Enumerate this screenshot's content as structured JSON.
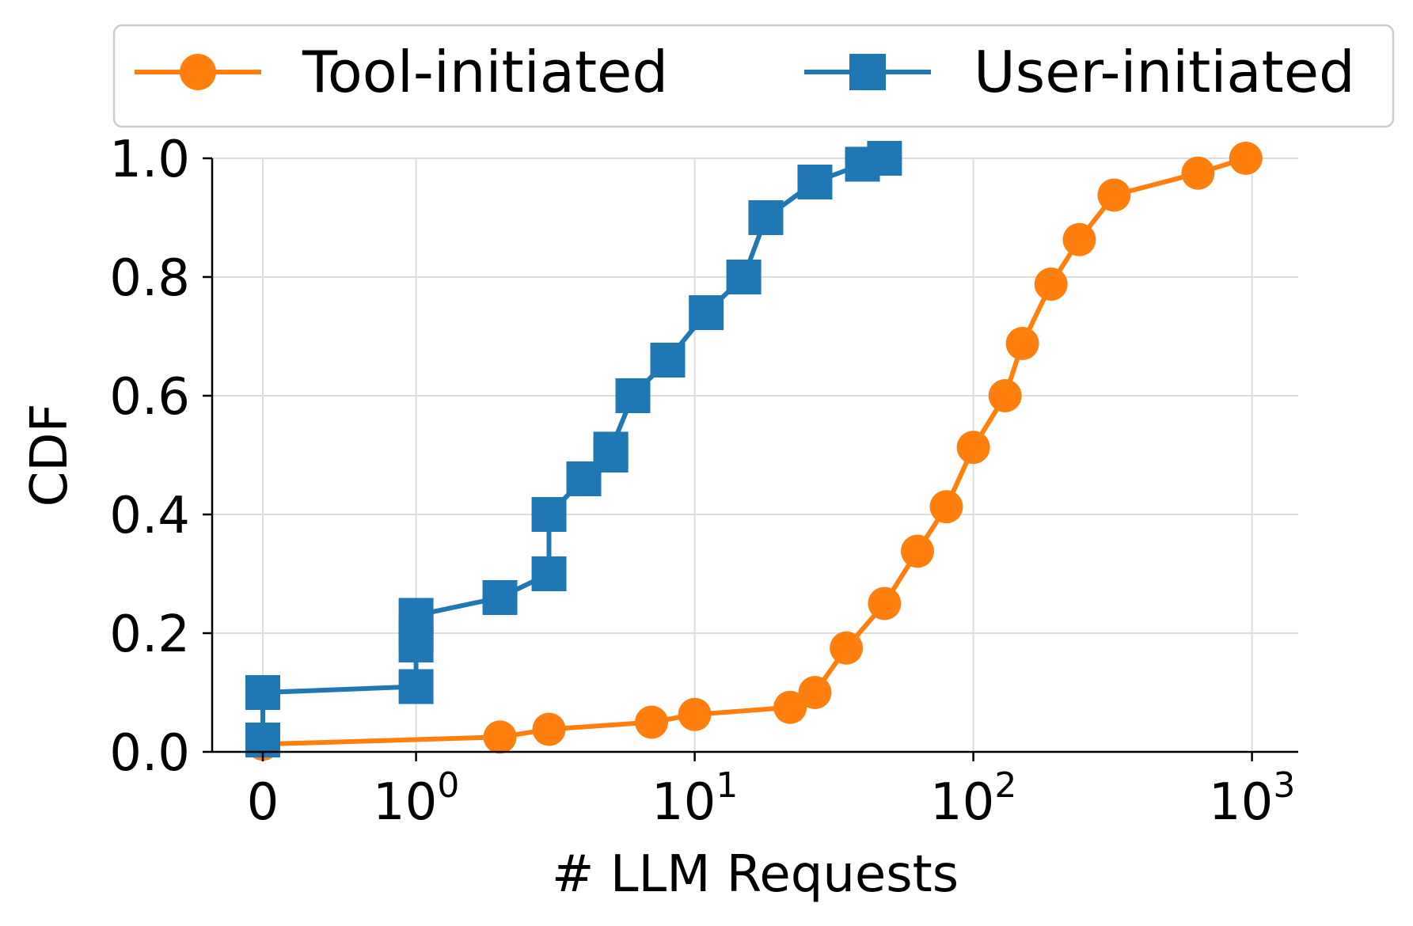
{
  "chart_data": {
    "type": "line",
    "xlabel": "# LLM Requests",
    "ylabel": "CDF",
    "x_scale": "symlog",
    "xlim": [
      -0.3,
      1300
    ],
    "ylim": [
      0.0,
      1.0
    ],
    "grid": true,
    "legend_position": "top (above plot, 2 columns)",
    "x_ticks": [
      {
        "value": 0,
        "base": "0",
        "exp": ""
      },
      {
        "value": 1,
        "base": "10",
        "exp": "0"
      },
      {
        "value": 10,
        "base": "10",
        "exp": "1"
      },
      {
        "value": 100,
        "base": "10",
        "exp": "2"
      },
      {
        "value": 1000,
        "base": "10",
        "exp": "3"
      }
    ],
    "y_ticks": [
      "0.0",
      "0.2",
      "0.4",
      "0.6",
      "0.8",
      "1.0"
    ],
    "series": [
      {
        "name": "Tool-initiated",
        "color": "#ff7f0e",
        "marker": "circle",
        "points": [
          {
            "x": 0,
            "y": 0.013
          },
          {
            "x": 2,
            "y": 0.025
          },
          {
            "x": 3,
            "y": 0.038
          },
          {
            "x": 7,
            "y": 0.05
          },
          {
            "x": 10,
            "y": 0.063
          },
          {
            "x": 22,
            "y": 0.075
          },
          {
            "x": 27,
            "y": 0.1
          },
          {
            "x": 35,
            "y": 0.175
          },
          {
            "x": 48,
            "y": 0.25
          },
          {
            "x": 63,
            "y": 0.338
          },
          {
            "x": 80,
            "y": 0.413
          },
          {
            "x": 100,
            "y": 0.513
          },
          {
            "x": 130,
            "y": 0.6
          },
          {
            "x": 150,
            "y": 0.688
          },
          {
            "x": 190,
            "y": 0.788
          },
          {
            "x": 240,
            "y": 0.863
          },
          {
            "x": 320,
            "y": 0.938
          },
          {
            "x": 640,
            "y": 0.975
          },
          {
            "x": 950,
            "y": 1.0
          }
        ]
      },
      {
        "name": "User-initiated",
        "color": "#1f77b4",
        "marker": "square",
        "points": [
          {
            "x": 0,
            "y": 0.02
          },
          {
            "x": 0,
            "y": 0.1
          },
          {
            "x": 1,
            "y": 0.11
          },
          {
            "x": 1,
            "y": 0.18
          },
          {
            "x": 1,
            "y": 0.2
          },
          {
            "x": 1,
            "y": 0.23
          },
          {
            "x": 2,
            "y": 0.26
          },
          {
            "x": 3,
            "y": 0.3
          },
          {
            "x": 3,
            "y": 0.4
          },
          {
            "x": 4,
            "y": 0.46
          },
          {
            "x": 5,
            "y": 0.5
          },
          {
            "x": 5,
            "y": 0.51
          },
          {
            "x": 6,
            "y": 0.6
          },
          {
            "x": 8,
            "y": 0.66
          },
          {
            "x": 11,
            "y": 0.74
          },
          {
            "x": 15,
            "y": 0.8
          },
          {
            "x": 18,
            "y": 0.9
          },
          {
            "x": 27,
            "y": 0.96
          },
          {
            "x": 40,
            "y": 0.99
          },
          {
            "x": 48,
            "y": 1.0
          }
        ]
      }
    ]
  }
}
